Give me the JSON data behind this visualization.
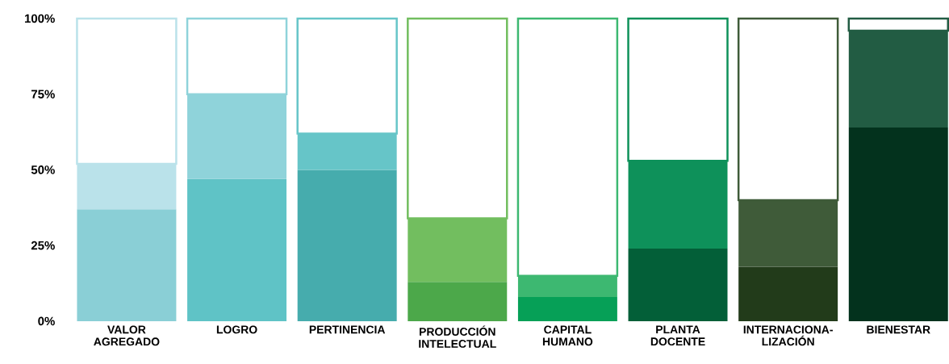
{
  "chart_data": {
    "type": "bar",
    "stacked": true,
    "categories": [
      "VALOR AGREGADO",
      "LOGRO",
      "PERTINENCIA",
      "PRODUCCIÓN INTELECTUAL",
      "CAPITAL HUMANO",
      "PLANTA DOCENTE",
      "INTERNACIONA-LIZACIÓN",
      "BIENESTAR"
    ],
    "series": [
      {
        "colors": [
          "#8acfd6",
          "#5fc3c6",
          "#46acad",
          "#4ca84a",
          "#06a057",
          "#035f38",
          "#223b1a",
          "#03321d"
        ],
        "values": [
          37,
          47,
          50,
          13,
          8,
          24,
          18,
          64
        ]
      },
      {
        "colors": [
          "#bae2ea",
          "#8fd3da",
          "#66c5c8",
          "#72be5f",
          "#3db871",
          "#0e915a",
          "#3f5b39",
          "#225c43"
        ],
        "values": [
          15,
          28,
          12,
          21,
          7,
          29,
          22,
          32
        ]
      },
      {
        "colors": [
          "#ffffff",
          "#ffffff",
          "#ffffff",
          "#ffffff",
          "#ffffff",
          "#ffffff",
          "#ffffff",
          "#ffffff"
        ],
        "values": [
          48,
          25,
          38,
          66,
          85,
          47,
          60,
          4
        ]
      }
    ],
    "ylim": [
      0,
      100
    ],
    "yticks": [
      {
        "value": 0,
        "label": "0%"
      },
      {
        "value": 25,
        "label": "25%"
      },
      {
        "value": 50,
        "label": "50%"
      },
      {
        "value": 75,
        "label": "75%"
      },
      {
        "value": 100,
        "label": "100%"
      }
    ],
    "grid": false
  }
}
